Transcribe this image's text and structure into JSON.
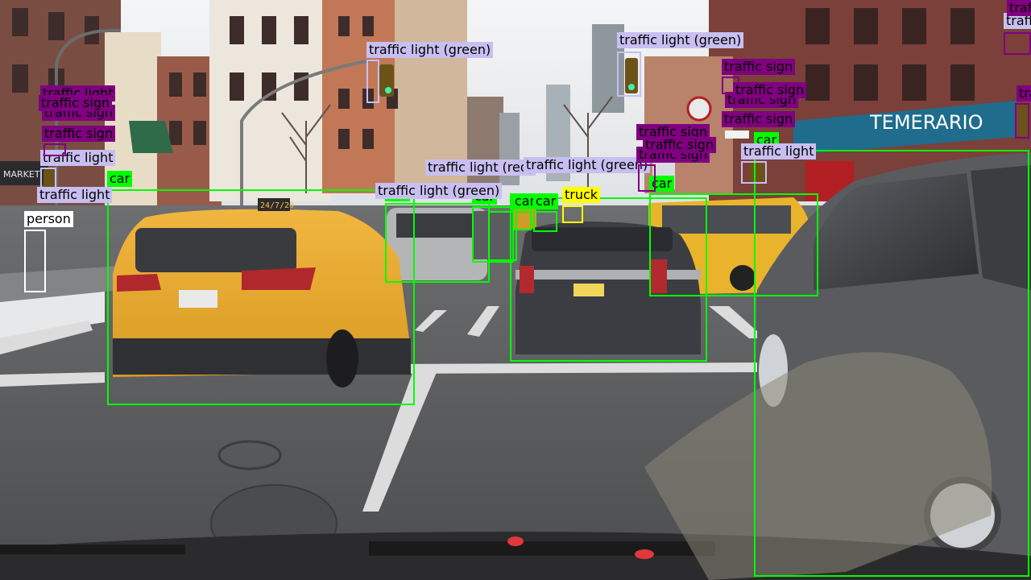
{
  "colors": {
    "car": "#00ff00",
    "truck": "#ffff00",
    "person": "#ffffff",
    "traffic_light": "#c8bff0",
    "traffic_sign": "#800080",
    "sign_text": "#000000",
    "light_text": "#000000"
  },
  "scene": {
    "store_sign": "TEMERARIO",
    "taxi_roof_sign": "24/7/20",
    "market_sign": "MARKET"
  },
  "detections": [
    {
      "label": "car",
      "cls": "car"
    },
    {
      "label": "car",
      "cls": "car"
    },
    {
      "label": "car",
      "cls": "car"
    },
    {
      "label": "car",
      "cls": "car"
    },
    {
      "label": "car",
      "cls": "car"
    },
    {
      "label": "car",
      "cls": "car"
    },
    {
      "label": "car",
      "cls": "car"
    },
    {
      "label": "car",
      "cls": "car"
    },
    {
      "label": "car",
      "cls": "car"
    },
    {
      "label": "truck",
      "cls": "truck"
    },
    {
      "label": "person",
      "cls": "person"
    },
    {
      "label": "traffic light (green)",
      "cls": "traffic_light"
    },
    {
      "label": "traffic light (green)",
      "cls": "traffic_light"
    },
    {
      "label": "traffic light",
      "cls": "traffic_light"
    },
    {
      "label": "traffic light",
      "cls": "traffic_light"
    },
    {
      "label": "traffic light",
      "cls": "traffic_light"
    },
    {
      "label": "traffic light (red)",
      "cls": "traffic_light"
    },
    {
      "label": "traffic light (green)",
      "cls": "traffic_light"
    },
    {
      "label": "traffic light (green)",
      "cls": "traffic_light"
    },
    {
      "label": "traffic light",
      "cls": "traffic_light"
    },
    {
      "label": "traffic sign",
      "cls": "traffic_sign"
    },
    {
      "label": "traffic sign",
      "cls": "traffic_sign"
    },
    {
      "label": "traffic sign",
      "cls": "traffic_sign"
    },
    {
      "label": "traffic sign",
      "cls": "traffic_sign"
    },
    {
      "label": "traffic sign",
      "cls": "traffic_sign"
    },
    {
      "label": "traffic sign",
      "cls": "traffic_sign"
    },
    {
      "label": "traffic sign",
      "cls": "traffic_sign"
    },
    {
      "label": "traffic sign",
      "cls": "traffic_sign"
    },
    {
      "label": "traffic sign",
      "cls": "traffic_sign"
    },
    {
      "label": "traffic sign",
      "cls": "traffic_sign"
    },
    {
      "label": "traffic sign",
      "cls": "traffic_sign"
    },
    {
      "label": "traffic sign",
      "cls": "traffic_sign"
    },
    {
      "label": "traffic light",
      "cls": "traffic_light"
    }
  ]
}
